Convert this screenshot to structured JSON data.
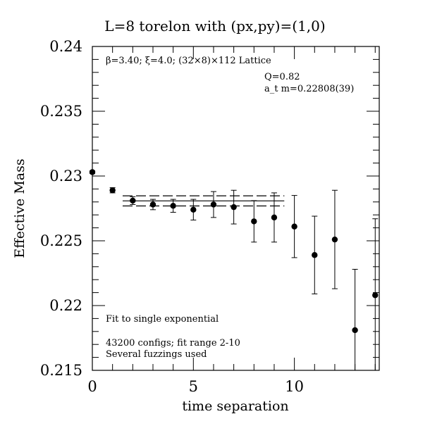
{
  "chart_data": {
    "type": "scatter",
    "title": "L=8 torelon with (px,py)=(1,0)",
    "xlabel": "time separation",
    "ylabel": "Effective Mass",
    "xlim": [
      0,
      14.2
    ],
    "ylim": [
      0.215,
      0.24
    ],
    "grid": false,
    "x_ticks": [
      {
        "value": 0,
        "label": "0"
      },
      {
        "value": 5,
        "label": "5"
      },
      {
        "value": 10,
        "label": "10"
      }
    ],
    "y_ticks": [
      {
        "value": 0.215,
        "label": "0.215"
      },
      {
        "value": 0.22,
        "label": "0.22"
      },
      {
        "value": 0.225,
        "label": "0.225"
      },
      {
        "value": 0.23,
        "label": "0.23"
      },
      {
        "value": 0.235,
        "label": "0.235"
      },
      {
        "value": 0.24,
        "label": "0.24"
      }
    ],
    "points": [
      {
        "x": 0,
        "y": 0.2303,
        "err": 0.0001
      },
      {
        "x": 1,
        "y": 0.2289,
        "err": 0.0002
      },
      {
        "x": 2,
        "y": 0.2281,
        "err": 0.0003
      },
      {
        "x": 3,
        "y": 0.2278,
        "err": 0.0004
      },
      {
        "x": 4,
        "y": 0.2277,
        "err": 0.0005
      },
      {
        "x": 5,
        "y": 0.2274,
        "err": 0.0008
      },
      {
        "x": 6,
        "y": 0.2278,
        "err": 0.001
      },
      {
        "x": 7,
        "y": 0.2276,
        "err": 0.0013
      },
      {
        "x": 8,
        "y": 0.2265,
        "err": 0.0016
      },
      {
        "x": 9,
        "y": 0.2268,
        "err": 0.0019
      },
      {
        "x": 10,
        "y": 0.2261,
        "err": 0.0024
      },
      {
        "x": 11,
        "y": 0.2239,
        "err": 0.003
      },
      {
        "x": 12,
        "y": 0.2251,
        "err": 0.0038
      },
      {
        "x": 13,
        "y": 0.2181,
        "err": 0.0047
      },
      {
        "x": 14,
        "y": 0.2208,
        "err": 0.0059
      }
    ],
    "fit": {
      "x_range": [
        1.5,
        9.5
      ],
      "value": 0.22808,
      "error": 0.00039
    },
    "annotations": [
      "β=3.40; ξ=4.0; (32×8)×112 Lattice",
      "Q=0.82",
      "a_t m=0.22808(39)",
      "Fit to single exponential",
      "43200 configs; fit range 2-10",
      "Several fuzzings used"
    ]
  }
}
